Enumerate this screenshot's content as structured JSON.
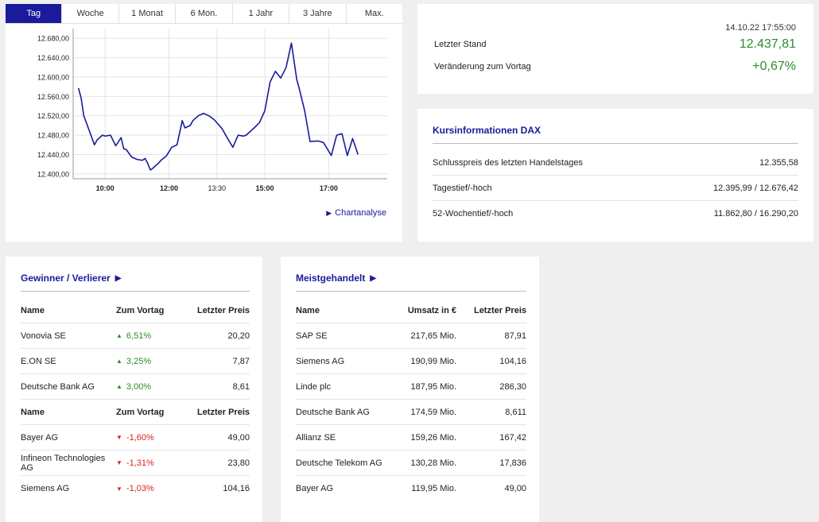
{
  "chart_card": {
    "tabs": [
      {
        "label": "Tag",
        "active": true
      },
      {
        "label": "Woche",
        "active": false
      },
      {
        "label": "1 Monat",
        "active": false
      },
      {
        "label": "6 Mon.",
        "active": false
      },
      {
        "label": "1 Jahr",
        "active": false
      },
      {
        "label": "3 Jahre",
        "active": false
      },
      {
        "label": "Max.",
        "active": false
      }
    ],
    "link_label": "Chartanalyse",
    "link_icon": "play-icon"
  },
  "chart_data": {
    "type": "line",
    "title": "",
    "xlabel": "",
    "ylabel": "",
    "ylim": [
      12390,
      12700
    ],
    "xlim": [
      "09:00",
      "18:50"
    ],
    "yticks": [
      "12.680,00",
      "12.640,00",
      "12.600,00",
      "12.560,00",
      "12.520,00",
      "12.480,00",
      "12.440,00",
      "12.400,00"
    ],
    "ytick_values": [
      12680,
      12640,
      12600,
      12560,
      12520,
      12480,
      12440,
      12400
    ],
    "xticks": [
      "10:00",
      "12:00",
      "13:30",
      "15:00",
      "17:00"
    ],
    "xtick_times": [
      "10:00",
      "12:00",
      "13:30",
      "15:00",
      "17:00"
    ],
    "xtick_bold": [
      true,
      true,
      false,
      true,
      true
    ],
    "grid": true,
    "line_color": "#1a1a9c",
    "series": [
      {
        "times": [
          "09:10",
          "09:15",
          "09:20",
          "09:30",
          "09:40",
          "09:45",
          "09:55",
          "10:00",
          "10:10",
          "10:20",
          "10:30",
          "10:35",
          "10:40",
          "10:50",
          "11:00",
          "11:10",
          "11:15",
          "11:20",
          "11:25",
          "11:30",
          "11:40",
          "11:45",
          "11:55",
          "12:05",
          "12:15",
          "12:25",
          "12:30",
          "12:40",
          "12:45",
          "12:55",
          "13:05",
          "13:15",
          "13:25",
          "13:40",
          "13:45",
          "14:00",
          "14:10",
          "14:20",
          "14:25",
          "14:40",
          "14:50",
          "15:00",
          "15:10",
          "15:20",
          "15:30",
          "15:40",
          "15:50",
          "16:00",
          "16:05",
          "16:15",
          "16:25",
          "16:40",
          "16:50",
          "17:05",
          "17:15",
          "17:25",
          "17:35",
          "17:45",
          "17:55"
        ],
        "values": [
          12577,
          12557,
          12520,
          12490,
          12460,
          12470,
          12480,
          12478,
          12480,
          12458,
          12475,
          12452,
          12450,
          12435,
          12430,
          12428,
          12432,
          12422,
          12408,
          12412,
          12422,
          12428,
          12437,
          12455,
          12460,
          12510,
          12495,
          12500,
          12510,
          12520,
          12525,
          12520,
          12512,
          12493,
          12483,
          12455,
          12480,
          12478,
          12480,
          12495,
          12506,
          12530,
          12590,
          12612,
          12598,
          12620,
          12670,
          12595,
          12575,
          12530,
          12467,
          12468,
          12465,
          12438,
          12480,
          12483,
          12438,
          12473,
          12440
        ]
      }
    ]
  },
  "quote": {
    "timestamp": "14.10.22 17:55:00",
    "last_label": "Letzter Stand",
    "last_value": "12.437,81",
    "change_label": "Veränderung zum Vortag",
    "change_value": "+0,67%",
    "value_color": "#2e8b2e"
  },
  "info": {
    "title": "Kursinformationen DAX",
    "rows": [
      {
        "label": "Schlusspreis des letzten Handelstages",
        "value": "12.355,58"
      },
      {
        "label": "Tagestief/-hoch",
        "value": "12.395,99 / 12.676,42"
      },
      {
        "label": "52-Wochentief/-hoch",
        "value": "11.862,80 / 16.290,20"
      }
    ]
  },
  "gainers_losers": {
    "title": "Gewinner / Verlierer",
    "title_icon": "play-icon",
    "gainers_header": {
      "name": "Name",
      "change": "Zum Vortag",
      "price": "Letzter Preis"
    },
    "gainers": [
      {
        "name": "Vonovia SE",
        "change": "6,51%",
        "price": "20,20",
        "icon": "triangle-up-icon"
      },
      {
        "name": "E.ON SE",
        "change": "3,25%",
        "price": "7,87",
        "icon": "triangle-up-icon"
      },
      {
        "name": "Deutsche Bank AG",
        "change": "3,00%",
        "price": "8,61",
        "icon": "triangle-up-icon"
      }
    ],
    "losers_header": {
      "name": "Name",
      "change": "Zum Vortag",
      "price": "Letzter Preis"
    },
    "losers": [
      {
        "name": "Bayer AG",
        "change": "-1,60%",
        "price": "49,00",
        "icon": "triangle-down-icon"
      },
      {
        "name": "Infineon Technologies AG",
        "change": "-1,31%",
        "price": "23,80",
        "icon": "triangle-down-icon"
      },
      {
        "name": "Siemens AG",
        "change": "-1,03%",
        "price": "104,16",
        "icon": "triangle-down-icon"
      }
    ],
    "up_color": "#2e8b2e",
    "down_color": "#dd2222"
  },
  "most_traded": {
    "title": "Meistgehandelt",
    "title_icon": "play-icon",
    "header": {
      "name": "Name",
      "turnover": "Umsatz in €",
      "price": "Letzter Preis"
    },
    "rows": [
      {
        "name": "SAP SE",
        "turnover": "217,65 Mio.",
        "price": "87,91"
      },
      {
        "name": "Siemens AG",
        "turnover": "190,99 Mio.",
        "price": "104,16"
      },
      {
        "name": "Linde plc",
        "turnover": "187,95 Mio.",
        "price": "286,30"
      },
      {
        "name": "Deutsche Bank AG",
        "turnover": "174,59 Mio.",
        "price": "8,611"
      },
      {
        "name": "Allianz SE",
        "turnover": "159,26 Mio.",
        "price": "167,42"
      },
      {
        "name": "Deutsche Telekom AG",
        "turnover": "130,28 Mio.",
        "price": "17,836"
      },
      {
        "name": "Bayer AG",
        "turnover": "119,95 Mio.",
        "price": "49,00"
      }
    ]
  }
}
